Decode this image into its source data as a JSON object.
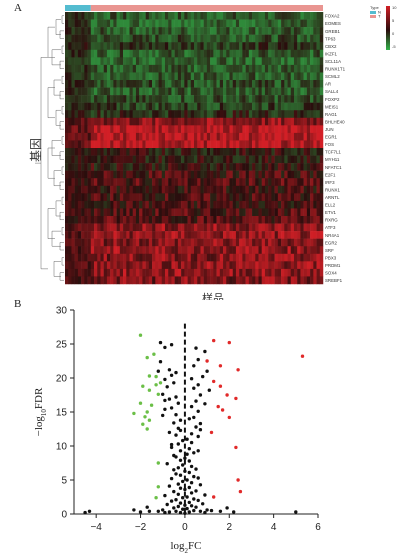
{
  "panel_a_label": "A",
  "panel_b_label": "B",
  "colors": {
    "red": "#d21f26",
    "dark": "#2a0d0d",
    "green": "#2f8a3a",
    "type_blue": "#54bcd0",
    "type_pink": "#e99591",
    "volcano_red": "#e12a2a",
    "volcano_green": "#6bbf47",
    "volcano_black": "#111111"
  },
  "chart_data": [
    {
      "type": "heatmap",
      "ylabel": "基因",
      "xlabel": "样品",
      "legend_title": "Type",
      "legend_type_items": [
        "N",
        "T"
      ],
      "color_scale_ticks": [
        "10",
        "5",
        "0",
        "-5"
      ],
      "rows": [
        "FOXA2",
        "EOMES",
        "GREB1",
        "TP63",
        "CBX2",
        "IKZF1",
        "SCL11A",
        "RUNX1T1",
        "SCML2",
        "AR",
        "SALL4",
        "FOXP2",
        "MEIS1",
        "RAG1",
        "BHLHE40",
        "JUN",
        "EGR1",
        "FOS",
        "TCF7L1",
        "MYH11",
        "NFATC1",
        "E2F1",
        "IRF3",
        "RUNX1",
        "ARNTL",
        "ELL2",
        "ETV1",
        "RXRG",
        "ATF3",
        "NR4A1",
        "EGR2",
        "SRF",
        "PBX3",
        "PRDM1",
        "SOX4",
        "SREBF1"
      ],
      "row_levels": [
        -0.6,
        -0.7,
        -0.6,
        -0.5,
        -0.3,
        -0.6,
        -0.7,
        -0.6,
        -0.6,
        -0.5,
        -0.6,
        -0.5,
        -0.4,
        -0.2,
        0.55,
        0.9,
        0.85,
        0.85,
        -0.05,
        -0.05,
        0.0,
        0.15,
        0.2,
        0.1,
        0.15,
        0.1,
        0.2,
        0.25,
        0.6,
        0.6,
        0.55,
        0.6,
        0.55,
        0.6,
        0.6,
        0.5
      ],
      "normal_sample_fraction": 0.1
    },
    {
      "type": "scatter",
      "xlabel_base": "log",
      "xlabel_sub": "2",
      "xlabel_tail": "FC",
      "ylabel_head": "−log",
      "ylabel_sub": "10",
      "ylabel_tail": "FDR",
      "xlim": [
        -5,
        6
      ],
      "ylim": [
        0,
        30
      ],
      "xticks": [
        "−4",
        "−2",
        "0",
        "2",
        "4",
        "6"
      ],
      "yticks": [
        "0",
        "5",
        "10",
        "15",
        "20",
        "25",
        "30"
      ],
      "vline_x": 0,
      "groups": [
        {
          "name": "up",
          "color": "#e12a2a",
          "points": [
            [
              1.3,
              25.5
            ],
            [
              2.0,
              25.2
            ],
            [
              5.3,
              23.2
            ],
            [
              1.0,
              22.5
            ],
            [
              1.6,
              21.8
            ],
            [
              2.4,
              21.2
            ],
            [
              1.3,
              19.5
            ],
            [
              1.6,
              18.8
            ],
            [
              1.9,
              17.5
            ],
            [
              2.3,
              17.0
            ],
            [
              1.5,
              15.8
            ],
            [
              1.7,
              15.3
            ],
            [
              2.0,
              14.2
            ],
            [
              1.2,
              12.0
            ],
            [
              2.3,
              9.8
            ],
            [
              2.4,
              5.0
            ],
            [
              2.5,
              3.3
            ],
            [
              1.3,
              2.5
            ]
          ]
        },
        {
          "name": "down",
          "color": "#6bbf47",
          "points": [
            [
              -2.0,
              26.3
            ],
            [
              -1.4,
              23.5
            ],
            [
              -1.7,
              23.0
            ],
            [
              -1.6,
              20.3
            ],
            [
              -1.3,
              20.2
            ],
            [
              -1.1,
              19.3
            ],
            [
              -1.3,
              19.0
            ],
            [
              -1.9,
              18.8
            ],
            [
              -1.6,
              18.2
            ],
            [
              -1.2,
              17.6
            ],
            [
              -2.0,
              16.3
            ],
            [
              -1.5,
              16.0
            ],
            [
              -1.7,
              15.0
            ],
            [
              -2.3,
              14.8
            ],
            [
              -1.8,
              14.3
            ],
            [
              -1.6,
              13.8
            ],
            [
              -1.9,
              13.2
            ],
            [
              -1.7,
              12.5
            ],
            [
              -1.2,
              7.5
            ],
            [
              -1.2,
              4.0
            ],
            [
              -1.3,
              2.4
            ]
          ]
        },
        {
          "name": "ns",
          "color": "#111111",
          "points": [
            [
              -1.1,
              25.2
            ],
            [
              -0.6,
              24.9
            ],
            [
              0.5,
              24.4
            ],
            [
              -0.9,
              24.5
            ],
            [
              0.9,
              23.9
            ],
            [
              0.6,
              22.7
            ],
            [
              -1.1,
              22.4
            ],
            [
              -0.7,
              21.2
            ],
            [
              -0.4,
              20.8
            ],
            [
              0.4,
              21.8
            ],
            [
              -0.6,
              20.4
            ],
            [
              0.3,
              19.9
            ],
            [
              0.8,
              20.2
            ],
            [
              -0.9,
              19.8
            ],
            [
              -0.5,
              19.3
            ],
            [
              0.6,
              19.0
            ],
            [
              -0.8,
              18.7
            ],
            [
              0.4,
              18.5
            ],
            [
              -1.0,
              17.6
            ],
            [
              0.7,
              17.5
            ],
            [
              -0.4,
              17.2
            ],
            [
              -0.7,
              16.9
            ],
            [
              0.5,
              16.6
            ],
            [
              -0.3,
              16.3
            ],
            [
              0.3,
              15.8
            ],
            [
              -0.6,
              15.6
            ],
            [
              -0.9,
              15.4
            ],
            [
              0.6,
              15.1
            ],
            [
              -0.4,
              14.6
            ],
            [
              0.4,
              14.2
            ],
            [
              0.2,
              14.0
            ],
            [
              -0.2,
              13.8
            ],
            [
              -0.5,
              13.4
            ],
            [
              0.7,
              13.3
            ],
            [
              0.5,
              12.8
            ],
            [
              -0.3,
              12.6
            ],
            [
              -0.2,
              12.3
            ],
            [
              0.3,
              11.8
            ],
            [
              -0.4,
              11.6
            ],
            [
              0.6,
              11.4
            ],
            [
              0.1,
              11.0
            ],
            [
              -0.1,
              10.8
            ],
            [
              0.3,
              10.5
            ],
            [
              -0.3,
              10.3
            ],
            [
              -0.6,
              9.8
            ],
            [
              0.2,
              9.6
            ],
            [
              -0.2,
              9.3
            ],
            [
              0.4,
              9.0
            ],
            [
              0.1,
              8.8
            ],
            [
              -0.5,
              8.6
            ],
            [
              -0.4,
              8.4
            ],
            [
              0.0,
              8.2
            ],
            [
              -0.2,
              7.9
            ],
            [
              0.2,
              7.8
            ],
            [
              -0.8,
              7.4
            ],
            [
              -0.1,
              7.2
            ],
            [
              0.3,
              7.0
            ],
            [
              -0.3,
              6.8
            ],
            [
              0.5,
              6.6
            ],
            [
              -0.5,
              6.5
            ],
            [
              0.0,
              6.3
            ],
            [
              0.2,
              6.1
            ],
            [
              -0.4,
              5.9
            ],
            [
              -0.2,
              5.7
            ],
            [
              0.4,
              5.5
            ],
            [
              0.6,
              5.3
            ],
            [
              -0.6,
              5.2
            ],
            [
              0.1,
              5.0
            ],
            [
              -0.1,
              4.8
            ],
            [
              0.3,
              4.6
            ],
            [
              -0.3,
              4.4
            ],
            [
              0.7,
              4.3
            ],
            [
              -0.7,
              4.1
            ],
            [
              0.2,
              3.9
            ],
            [
              -0.2,
              3.8
            ],
            [
              0.0,
              3.6
            ],
            [
              0.5,
              3.4
            ],
            [
              -0.5,
              3.3
            ],
            [
              0.3,
              3.1
            ],
            [
              -0.3,
              2.9
            ],
            [
              0.9,
              2.8
            ],
            [
              -0.9,
              2.7
            ],
            [
              0.1,
              2.5
            ],
            [
              -0.1,
              2.4
            ],
            [
              0.4,
              2.2
            ],
            [
              -0.4,
              2.1
            ],
            [
              0.6,
              2.0
            ],
            [
              -0.6,
              1.9
            ],
            [
              0.2,
              1.7
            ],
            [
              -0.2,
              1.6
            ],
            [
              0.8,
              1.5
            ],
            [
              -0.8,
              1.4
            ],
            [
              0.0,
              1.3
            ],
            [
              0.3,
              1.2
            ],
            [
              -0.3,
              1.1
            ],
            [
              0.5,
              1.0
            ],
            [
              -0.5,
              0.9
            ],
            [
              0.1,
              0.8
            ],
            [
              -0.1,
              0.7
            ],
            [
              1.0,
              0.6
            ],
            [
              -1.0,
              0.6
            ],
            [
              0.4,
              0.5
            ],
            [
              -0.4,
              0.4
            ],
            [
              0.7,
              0.4
            ],
            [
              -0.7,
              0.3
            ],
            [
              0.2,
              0.3
            ],
            [
              -0.2,
              0.2
            ],
            [
              0.9,
              0.2
            ],
            [
              -0.9,
              0.2
            ],
            [
              0.0,
              0.1
            ],
            [
              1.2,
              0.5
            ],
            [
              -1.2,
              0.4
            ],
            [
              -2.3,
              0.6
            ],
            [
              -2.0,
              0.3
            ],
            [
              -1.7,
              1.0
            ],
            [
              -1.6,
              0.4
            ],
            [
              1.6,
              0.4
            ],
            [
              1.9,
              0.9
            ],
            [
              2.2,
              0.3
            ],
            [
              -4.3,
              0.4
            ],
            [
              -4.5,
              0.2
            ],
            [
              5.0,
              0.3
            ],
            [
              -0.6,
              10.2
            ],
            [
              0.6,
              9.3
            ],
            [
              -0.7,
              12.0
            ],
            [
              0.7,
              12.4
            ],
            [
              -1.0,
              14.5
            ],
            [
              0.9,
              16.2
            ],
            [
              -0.9,
              16.7
            ],
            [
              1.1,
              18.2
            ],
            [
              -1.2,
              21.0
            ],
            [
              1.0,
              21.0
            ]
          ]
        }
      ]
    }
  ]
}
